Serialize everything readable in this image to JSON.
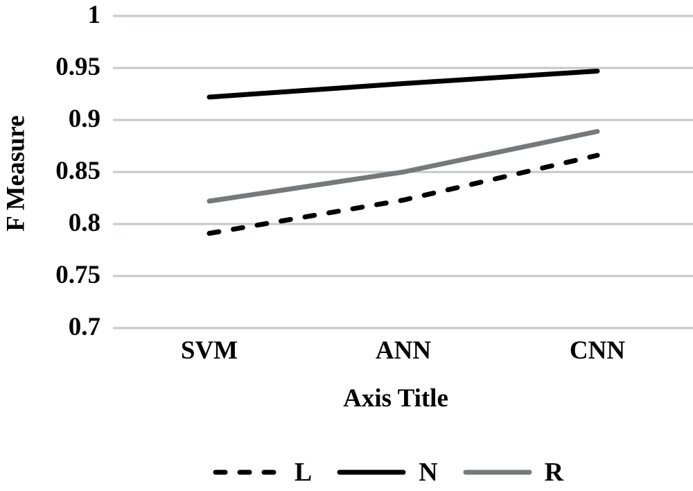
{
  "chart_data": {
    "type": "line",
    "xlabel": "Axis Title",
    "ylabel": "F Measure",
    "categories": [
      "SVM",
      "ANN",
      "CNN"
    ],
    "series": [
      {
        "name": "L",
        "values": [
          0.791,
          0.823,
          0.866
        ],
        "color": "#000000",
        "dash": true
      },
      {
        "name": "N",
        "values": [
          0.922,
          0.935,
          0.947
        ],
        "color": "#000000",
        "dash": false
      },
      {
        "name": "R",
        "values": [
          0.822,
          0.85,
          0.889
        ],
        "color": "#76787A",
        "dash": false
      }
    ],
    "ylim": [
      0.7,
      1.0
    ],
    "ytick_values": [
      1.0,
      0.95,
      0.9,
      0.85,
      0.8,
      0.75,
      0.7
    ],
    "yticks": [
      "1",
      "0.95",
      "0.9",
      "0.85",
      "0.8",
      "0.75",
      "0.7"
    ],
    "grid": true,
    "gridline_color": "#C4C7C9",
    "background_color": "#FFFFFF",
    "legend_position": "bottom"
  }
}
